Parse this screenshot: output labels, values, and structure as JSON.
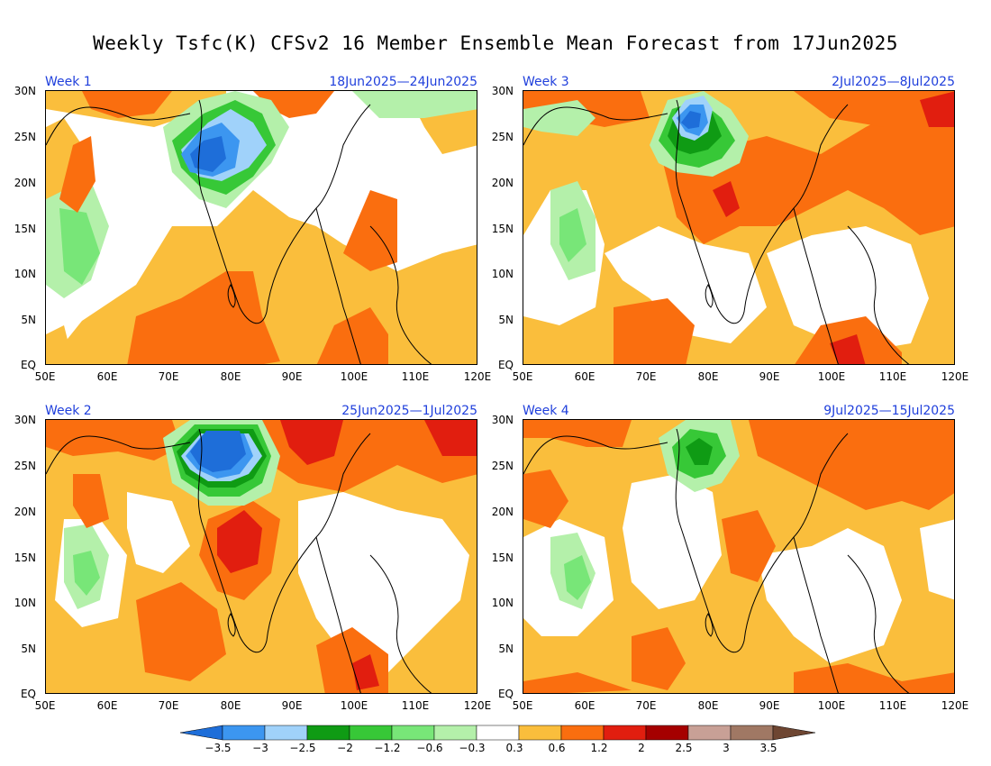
{
  "title": "Weekly Tsfc(K) CFSv2 16 Member Ensemble Mean Forecast from 17Jun2025",
  "panels": [
    {
      "week": "Week 1",
      "dates": "18Jun2025—24Jun2025"
    },
    {
      "week": "Week 3",
      "dates": "2Jul2025—8Jul2025"
    },
    {
      "week": "Week 2",
      "dates": "25Jun2025—1Jul2025"
    },
    {
      "week": "Week 4",
      "dates": "9Jul2025—15Jul2025"
    }
  ],
  "axes": {
    "lat": [
      "30N",
      "25N",
      "20N",
      "15N",
      "10N",
      "5N",
      "EQ"
    ],
    "lon": [
      "50E",
      "60E",
      "70E",
      "80E",
      "90E",
      "100E",
      "110E",
      "120E"
    ]
  },
  "colorbar": {
    "labels": [
      "−3.5",
      "−3",
      "−2.5",
      "−2",
      "−1.2",
      "−0.6",
      "−0.3",
      "0.3",
      "0.6",
      "1.2",
      "2",
      "2.5",
      "3",
      "3.5"
    ],
    "colors": [
      "#1e6ed9",
      "#3c96f0",
      "#a0d2fa",
      "#0f9b14",
      "#37c837",
      "#78e678",
      "#b4f0aa",
      "#ffffff",
      "#fabe3c",
      "#fa6e0f",
      "#e11e0f",
      "#a50000",
      "#c8a096",
      "#a07864",
      "#6e4632"
    ]
  }
}
